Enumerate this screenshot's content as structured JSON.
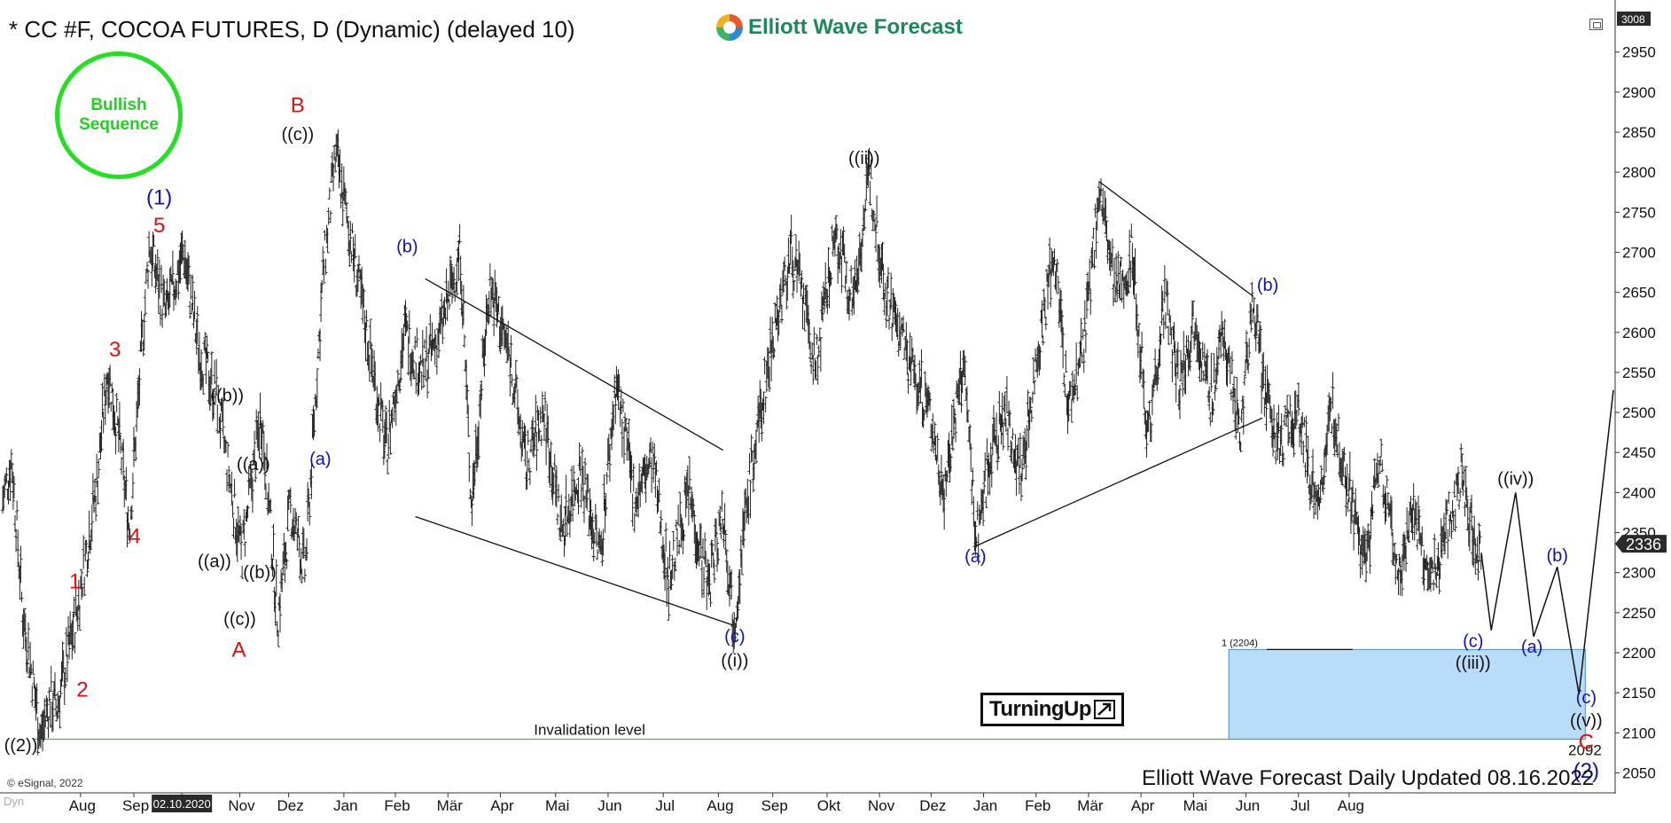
{
  "header": {
    "title": "* CC #F, COCOA FUTURES, D (Dynamic) (delayed 10)",
    "brand": "Elliott Wave Forecast"
  },
  "badges": {
    "sequence_line1": "Bullish",
    "sequence_line2": "Sequence",
    "turning_up": "TurningUp"
  },
  "footer": {
    "updated": "Elliott Wave Forecast Daily Updated 08.16.2022",
    "copyright": "© eSignal, 2022",
    "dyn": "Dyn"
  },
  "colors": {
    "red": "#e01010",
    "blue": "#1010c0",
    "black": "#111111",
    "green": "#22d022",
    "zone": "#b9dcf9",
    "zone_border": "#4a90c8",
    "price_badge": "#2a2a2a"
  },
  "chart_data": {
    "type": "bar",
    "subtype": "ohlc",
    "y_range": [
      2025,
      3015
    ],
    "y_ticks": [
      2050,
      2100,
      2150,
      2200,
      2250,
      2300,
      2350,
      2400,
      2450,
      2500,
      2550,
      2600,
      2650,
      2700,
      2750,
      2800,
      2850,
      2900,
      2950
    ],
    "y_top_label": "3008",
    "last_price": "2336",
    "invalidation": {
      "value": 2092,
      "label": "Invalidation level",
      "value_label": "2092"
    },
    "target_zone": {
      "low": 2092,
      "high": 2204,
      "label": "1 (2204)"
    },
    "x_labels": [
      "Aug",
      "Sep",
      "02.10.2020",
      "Nov",
      "Dez",
      "Jan",
      "Feb",
      "Mär",
      "Apr",
      "Mai",
      "Jun",
      "Jul",
      "Aug",
      "Sep",
      "Okt",
      "Nov",
      "Dez",
      "Jan",
      "Feb",
      "Mär",
      "Apr",
      "Mai",
      "Jun",
      "Jul",
      "Aug"
    ],
    "x_label_days": [
      14,
      73,
      126,
      190,
      244,
      305,
      362,
      420,
      478,
      539,
      597,
      658,
      719,
      779,
      839,
      897,
      954,
      1012,
      1070,
      1128,
      1186,
      1244,
      1302,
      1360,
      1416
    ],
    "x_highlight_index": 2,
    "x_range_days": [
      -75,
      1710
    ],
    "anchors": [
      [
        -72,
        2390
      ],
      [
        -62,
        2440
      ],
      [
        -50,
        2250
      ],
      [
        -38,
        2160
      ],
      [
        -30,
        2092
      ],
      [
        -20,
        2140
      ],
      [
        -12,
        2130
      ],
      [
        10,
        2250
      ],
      [
        32,
        2410
      ],
      [
        44,
        2555
      ],
      [
        56,
        2470
      ],
      [
        68,
        2355
      ],
      [
        90,
        2710
      ],
      [
        108,
        2620
      ],
      [
        128,
        2700
      ],
      [
        144,
        2580
      ],
      [
        164,
        2520
      ],
      [
        192,
        2320
      ],
      [
        214,
        2500
      ],
      [
        232,
        2240
      ],
      [
        246,
        2380
      ],
      [
        262,
        2300
      ],
      [
        282,
        2670
      ],
      [
        296,
        2820
      ],
      [
        312,
        2720
      ],
      [
        330,
        2600
      ],
      [
        352,
        2450
      ],
      [
        372,
        2600
      ],
      [
        392,
        2550
      ],
      [
        412,
        2600
      ],
      [
        434,
        2700
      ],
      [
        446,
        2380
      ],
      [
        466,
        2660
      ],
      [
        490,
        2560
      ],
      [
        506,
        2430
      ],
      [
        526,
        2500
      ],
      [
        546,
        2350
      ],
      [
        566,
        2430
      ],
      [
        588,
        2320
      ],
      [
        606,
        2540
      ],
      [
        626,
        2390
      ],
      [
        646,
        2440
      ],
      [
        664,
        2290
      ],
      [
        686,
        2400
      ],
      [
        708,
        2280
      ],
      [
        724,
        2380
      ],
      [
        736,
        2235
      ],
      [
        752,
        2400
      ],
      [
        780,
        2600
      ],
      [
        800,
        2700
      ],
      [
        814,
        2630
      ],
      [
        826,
        2550
      ],
      [
        848,
        2720
      ],
      [
        868,
        2640
      ],
      [
        886,
        2795
      ],
      [
        904,
        2650
      ],
      [
        930,
        2560
      ],
      [
        952,
        2500
      ],
      [
        968,
        2400
      ],
      [
        990,
        2560
      ],
      [
        1004,
        2340
      ],
      [
        1018,
        2440
      ],
      [
        1036,
        2500
      ],
      [
        1054,
        2420
      ],
      [
        1070,
        2560
      ],
      [
        1090,
        2700
      ],
      [
        1106,
        2500
      ],
      [
        1124,
        2590
      ],
      [
        1140,
        2780
      ],
      [
        1158,
        2640
      ],
      [
        1176,
        2700
      ],
      [
        1194,
        2470
      ],
      [
        1212,
        2640
      ],
      [
        1228,
        2530
      ],
      [
        1246,
        2620
      ],
      [
        1262,
        2510
      ],
      [
        1278,
        2600
      ],
      [
        1296,
        2470
      ],
      [
        1310,
        2650
      ],
      [
        1322,
        2520
      ],
      [
        1338,
        2460
      ],
      [
        1360,
        2500
      ],
      [
        1380,
        2380
      ],
      [
        1398,
        2500
      ],
      [
        1416,
        2400
      ],
      [
        1434,
        2300
      ],
      [
        1450,
        2450
      ],
      [
        1470,
        2290
      ],
      [
        1486,
        2380
      ],
      [
        1504,
        2280
      ],
      [
        1520,
        2340
      ],
      [
        1540,
        2420
      ],
      [
        1556,
        2330
      ],
      [
        1562,
        2325
      ]
    ],
    "wave_labels": [
      {
        "text": "((2))",
        "x": -52,
        "y": 2077,
        "color": "black"
      },
      {
        "text": "1",
        "x": 8,
        "y": 2280,
        "color": "red"
      },
      {
        "text": "2",
        "x": 16,
        "y": 2145,
        "color": "red"
      },
      {
        "text": "3",
        "x": 52,
        "y": 2570,
        "color": "red"
      },
      {
        "text": "4",
        "x": 74,
        "y": 2337,
        "color": "red"
      },
      {
        "text": "5",
        "x": 101,
        "y": 2725,
        "color": "red"
      },
      {
        "text": "(1)",
        "x": 101,
        "y": 2760,
        "color": "blue"
      },
      {
        "text": "((a))",
        "x": 162,
        "y": 2307,
        "color": "black"
      },
      {
        "text": "((b))",
        "x": 176,
        "y": 2514,
        "color": "black"
      },
      {
        "text": "((a))",
        "x": 205,
        "y": 2428,
        "color": "black"
      },
      {
        "text": "((b))",
        "x": 212,
        "y": 2293,
        "color": "black"
      },
      {
        "text": "((c))",
        "x": 190,
        "y": 2235,
        "color": "black"
      },
      {
        "text": "A",
        "x": 189,
        "y": 2195,
        "color": "red"
      },
      {
        "text": "B",
        "x": 254,
        "y": 2875,
        "color": "red"
      },
      {
        "text": "((c))",
        "x": 254,
        "y": 2840,
        "color": "black"
      },
      {
        "text": "(a)",
        "x": 279,
        "y": 2435,
        "color": "blue"
      },
      {
        "text": "(b)",
        "x": 375,
        "y": 2700,
        "color": "blue"
      },
      {
        "text": "(c)",
        "x": 737,
        "y": 2213,
        "color": "blue"
      },
      {
        "text": "((i))",
        "x": 737,
        "y": 2183,
        "color": "black"
      },
      {
        "text": "((ii))",
        "x": 880,
        "y": 2810,
        "color": "black"
      },
      {
        "text": "(a)",
        "x": 1003,
        "y": 2313,
        "color": "blue"
      },
      {
        "text": "(b)",
        "x": 1326,
        "y": 2652,
        "color": "blue"
      },
      {
        "text": "(c)",
        "x": 1553,
        "y": 2207,
        "color": "blue"
      },
      {
        "text": "((iii))",
        "x": 1553,
        "y": 2180,
        "color": "black"
      },
      {
        "text": "((iv))",
        "x": 1600,
        "y": 2410,
        "color": "black"
      },
      {
        "text": "(a)",
        "x": 1618,
        "y": 2200,
        "color": "blue"
      },
      {
        "text": "(b)",
        "x": 1646,
        "y": 2314,
        "color": "blue"
      },
      {
        "text": "(c)",
        "x": 1678,
        "y": 2137,
        "color": "blue"
      },
      {
        "text": "((v))",
        "x": 1678,
        "y": 2108,
        "color": "black"
      },
      {
        "text": "C",
        "x": 1678,
        "y": 2080,
        "color": "red"
      },
      {
        "text": "(2)",
        "x": 1678,
        "y": 2044,
        "color": "blue"
      }
    ],
    "projection": [
      [
        1562,
        2325
      ],
      [
        1573,
        2228
      ],
      [
        1600,
        2400
      ],
      [
        1620,
        2220
      ],
      [
        1646,
        2307
      ],
      [
        1670,
        2148
      ],
      [
        1708,
        2528
      ]
    ],
    "trendlines": [
      [
        [
          395,
          2667
        ],
        [
          724,
          2453
        ]
      ],
      [
        [
          384,
          2370
        ],
        [
          736,
          2234
        ]
      ],
      [
        [
          1003,
          2333
        ],
        [
          1320,
          2493
        ]
      ],
      [
        [
          1140,
          2788
        ],
        [
          1310,
          2645
        ]
      ]
    ]
  }
}
